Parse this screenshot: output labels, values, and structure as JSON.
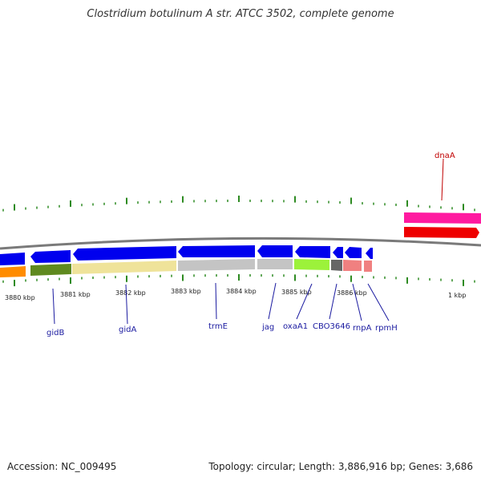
{
  "title": "Clostridium botulinum A str. ATCC 3502, complete genome",
  "footer": {
    "accession": "Accession: NC_009495",
    "summary": "Topology: circular; Length: 3,886,916 bp; Genes: 3,686"
  },
  "kbp_labels": [
    "3880 kbp",
    "3881 kbp",
    "3882 kbp",
    "3883 kbp",
    "3884 kbp",
    "3885 kbp",
    "3886 kbp",
    "1 kbp"
  ],
  "genes": [
    {
      "name": "gidB",
      "strand": "reverse",
      "color": "#6b8e23"
    },
    {
      "name": "gidA",
      "strand": "reverse",
      "color": "#f0e68c"
    },
    {
      "name": "trmE",
      "strand": "reverse",
      "color": "#c0c0c0"
    },
    {
      "name": "jag",
      "strand": "reverse",
      "color": "#c0c0c0"
    },
    {
      "name": "oxaA1",
      "strand": "reverse",
      "color": "#adff2f"
    },
    {
      "name": "CBO3646",
      "strand": "reverse",
      "color": "#696969"
    },
    {
      "name": "rnpA",
      "strand": "reverse",
      "color": "#f08080"
    },
    {
      "name": "rpmH",
      "strand": "reverse",
      "color": "#f08080"
    },
    {
      "name": "dnaA",
      "strand": "forward",
      "color": "#ff0000"
    }
  ],
  "colors": {
    "forward_cds": "#0000ee",
    "tick": "#2e8b22",
    "backbone": "#808080",
    "label_blue": "#1a1aa0",
    "label_red": "#c00000",
    "dnaA_top": "#ff1493"
  }
}
